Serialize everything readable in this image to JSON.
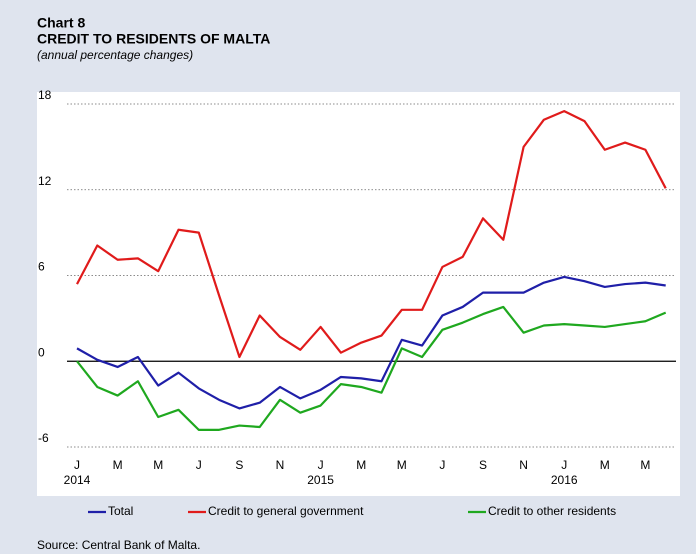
{
  "chart_data": {
    "type": "line",
    "title": "Chart 8",
    "subtitle": "CREDIT TO RESIDENTS OF MALTA",
    "units_note": "(annual percentage changes)",
    "source": "Source: Central Bank of Malta.",
    "categories": [
      "J",
      null,
      "M",
      null,
      "M",
      null,
      "J",
      null,
      "S",
      null,
      "N",
      null,
      "J",
      null,
      "M",
      null,
      "M",
      null,
      "J",
      null,
      "S",
      null,
      "N",
      null,
      "J",
      null,
      "M",
      null,
      "M",
      null
    ],
    "year_labels": [
      "2014",
      null,
      null,
      null,
      null,
      null,
      null,
      null,
      null,
      null,
      null,
      null,
      "2015",
      null,
      null,
      null,
      null,
      null,
      null,
      null,
      null,
      null,
      null,
      null,
      "2016",
      null,
      null,
      null,
      null,
      null
    ],
    "ylim": [
      -6,
      18
    ],
    "yticks": [
      -6,
      0,
      6,
      12,
      18
    ],
    "grid": true,
    "series": [
      {
        "name": "Total",
        "color": "#1f1fa8",
        "values": [
          0.9,
          0.1,
          -0.4,
          0.3,
          -1.7,
          -0.8,
          -1.9,
          -2.7,
          -3.3,
          -2.9,
          -1.8,
          -2.6,
          -2.0,
          -1.1,
          -1.2,
          -1.4,
          1.5,
          1.1,
          3.2,
          3.8,
          4.8,
          4.8,
          4.8,
          5.5,
          5.9,
          5.6,
          5.2,
          5.4,
          5.5,
          5.3
        ]
      },
      {
        "name": "Credit to general government",
        "color": "#e01b1b",
        "values": [
          5.4,
          8.1,
          7.1,
          7.2,
          6.3,
          9.2,
          9.0,
          4.6,
          0.3,
          3.2,
          1.7,
          0.8,
          2.4,
          0.6,
          1.3,
          1.8,
          3.6,
          3.6,
          6.6,
          7.3,
          10.0,
          8.5,
          15.0,
          16.9,
          17.5,
          16.8,
          14.8,
          15.3,
          14.8,
          12.1
        ]
      },
      {
        "name": "Credit to other residents",
        "color": "#1fa81f",
        "values": [
          0,
          -1.8,
          -2.4,
          -1.4,
          -3.9,
          -3.4,
          -4.8,
          -4.8,
          -4.5,
          -4.6,
          -2.7,
          -3.6,
          -3.1,
          -1.6,
          -1.8,
          -2.2,
          0.9,
          0.3,
          2.2,
          2.7,
          3.3,
          3.8,
          2.0,
          2.5,
          2.6,
          2.5,
          2.4,
          2.6,
          2.8,
          3.4
        ]
      }
    ]
  }
}
